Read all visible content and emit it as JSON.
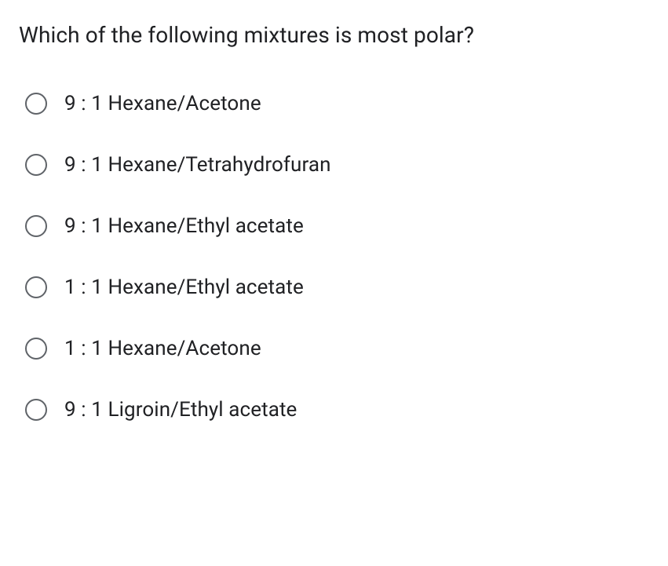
{
  "question": {
    "text": "Which of the following mixtures is most polar?",
    "font_size": 28,
    "color": "#202124"
  },
  "options": [
    {
      "label": "9 : 1 Hexane/Acetone",
      "selected": false
    },
    {
      "label": "9 : 1 Hexane/Tetrahydrofuran",
      "selected": false
    },
    {
      "label": "9 : 1 Hexane/Ethyl acetate",
      "selected": false
    },
    {
      "label": "1 : 1 Hexane/Ethyl acetate",
      "selected": false
    },
    {
      "label": "1 : 1 Hexane/Acetone",
      "selected": false
    },
    {
      "label": "9 : 1 Ligroin/Ethyl acetate",
      "selected": false
    }
  ],
  "styling": {
    "background_color": "#ffffff",
    "text_color": "#202124",
    "radio_border_color": "#5f6368",
    "option_font_size": 26,
    "radio_size": 28,
    "option_gap": 48,
    "question_margin_bottom": 56
  }
}
